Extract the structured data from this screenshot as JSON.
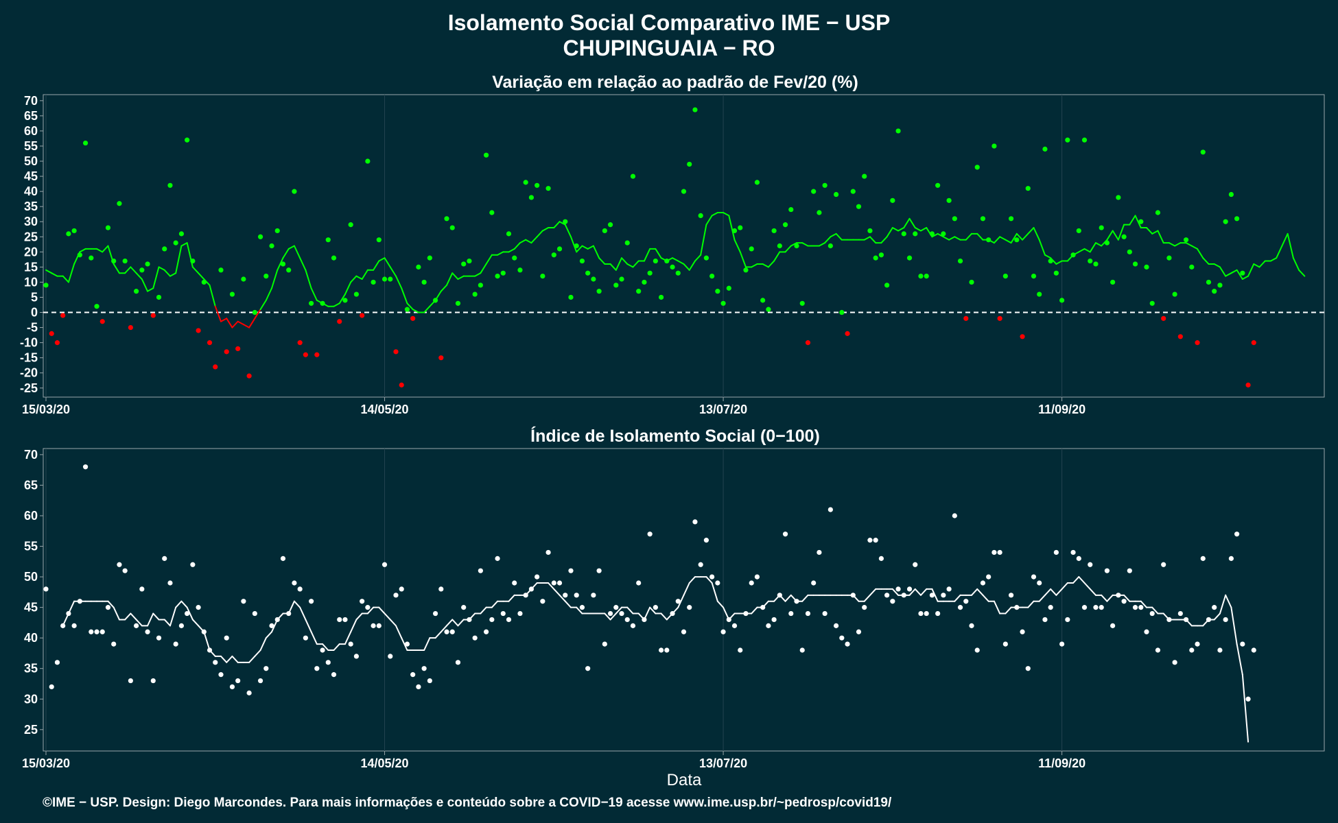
{
  "chart_data": [
    {
      "type": "scatter",
      "title": "Isolamento Social Comparativo IME − USP",
      "subtitle": "CHUPINGUAIA − RO",
      "panel_title": "Variação em relação ao padrão de Fev/20 (%)",
      "ylim": [
        -28,
        72
      ],
      "yticks": [
        -25,
        -20,
        -15,
        -10,
        -5,
        0,
        5,
        10,
        15,
        20,
        25,
        30,
        35,
        40,
        45,
        50,
        55,
        60,
        65,
        70
      ],
      "x_start": "2020-03-15",
      "x_end": "2020-10-27",
      "xticks": [
        {
          "date": "2020-03-15",
          "label": "15/03/20"
        },
        {
          "date": "2020-05-14",
          "label": "14/05/20"
        },
        {
          "date": "2020-07-13",
          "label": "13/07/20"
        },
        {
          "date": "2020-09-11",
          "label": "11/09/20"
        }
      ],
      "reference_line": 0,
      "colors": {
        "positive": "#00ff00",
        "negative": "#ff0000",
        "reference": "#ffffff"
      },
      "points": [
        9,
        -7,
        -10,
        -1,
        26,
        27,
        19,
        56,
        18,
        2,
        -3,
        28,
        17,
        36,
        17,
        -5,
        7,
        14,
        16,
        -1,
        5,
        21,
        42,
        23,
        26,
        57,
        17,
        -6,
        10,
        -10,
        -18,
        14,
        -13,
        6,
        -12,
        11,
        -21,
        0,
        25,
        12,
        22,
        27,
        16,
        14,
        40,
        -10,
        -14,
        3,
        -14,
        3,
        24,
        18,
        -3,
        4,
        29,
        6,
        -1,
        50,
        10,
        24,
        11,
        11,
        -13,
        -24,
        1,
        -2,
        15,
        10,
        18,
        4,
        -15,
        31,
        28,
        3,
        16,
        17,
        6,
        9,
        52,
        33,
        12,
        13,
        26,
        18,
        14,
        43,
        38,
        42,
        12,
        41,
        19,
        21,
        30,
        5,
        22,
        17,
        13,
        11,
        7,
        27,
        29,
        9,
        11,
        23,
        45,
        7,
        10,
        13,
        17,
        5,
        17,
        15,
        13,
        40,
        49,
        67,
        32,
        18,
        12,
        7,
        3,
        8,
        27,
        28,
        14,
        21,
        43,
        4,
        1,
        27,
        22,
        29,
        34,
        22,
        3,
        -10,
        40,
        33,
        42,
        22,
        39,
        0,
        -7,
        40,
        35,
        45,
        27,
        18,
        19,
        9,
        37,
        60,
        26,
        18,
        26,
        12,
        12,
        26,
        42,
        26,
        37,
        31,
        17,
        -2,
        10,
        48,
        31,
        24,
        55,
        -2,
        12,
        31,
        24,
        -8,
        41,
        12,
        6,
        54,
        17,
        13,
        4,
        57,
        19,
        27,
        57,
        17,
        16,
        28,
        23,
        10,
        38,
        25,
        20,
        16,
        30,
        15,
        3,
        33,
        -2,
        18,
        6,
        -8,
        24,
        15,
        -10,
        53,
        10,
        7,
        9,
        30,
        39,
        31,
        13,
        -24,
        -10
      ],
      "moving_average": [
        14,
        13,
        12,
        12,
        10,
        16,
        20,
        21,
        21,
        21,
        20,
        22,
        16,
        13,
        13,
        15,
        13,
        11,
        7,
        8,
        15,
        14,
        12,
        13,
        22,
        23,
        15,
        13,
        11,
        9,
        2,
        -3,
        -2,
        -5,
        -3,
        -4,
        -5,
        -2,
        1,
        4,
        8,
        14,
        18,
        21,
        22,
        18,
        14,
        8,
        4,
        3,
        2,
        2,
        3,
        6,
        10,
        12,
        11,
        14,
        14,
        17,
        18,
        15,
        12,
        8,
        3,
        1,
        0,
        0,
        2,
        4,
        7,
        9,
        13,
        11,
        12,
        12,
        12,
        13,
        16,
        19,
        19,
        20,
        20,
        21,
        23,
        24,
        23,
        25,
        27,
        28,
        28,
        30,
        29,
        25,
        20,
        22,
        21,
        22,
        18,
        16,
        16,
        14,
        18,
        16,
        15,
        17,
        17,
        21,
        21,
        18,
        17,
        18,
        17,
        16,
        14,
        17,
        19,
        29,
        32,
        33,
        33,
        32,
        24,
        20,
        15,
        15,
        16,
        16,
        15,
        17,
        20,
        20,
        22,
        23,
        23,
        22,
        22,
        22,
        23,
        25,
        26,
        24,
        24,
        24,
        24,
        24,
        25,
        23,
        23,
        25,
        28,
        27,
        28,
        31,
        28,
        27,
        28,
        25,
        26,
        25,
        24,
        25,
        24,
        24,
        26,
        26,
        24,
        24,
        23,
        25,
        24,
        23,
        26,
        24,
        26,
        28,
        24,
        19,
        18,
        16,
        17,
        17,
        19,
        20,
        21,
        20,
        23,
        22,
        24,
        27,
        24,
        29,
        29,
        32,
        28,
        28,
        26,
        27,
        23,
        23,
        22,
        23,
        23,
        22,
        21,
        18,
        16,
        16,
        15,
        12,
        13,
        14,
        11,
        12,
        16,
        15,
        17,
        17,
        18,
        22,
        26,
        18,
        14,
        12
      ]
    },
    {
      "type": "scatter",
      "panel_title": "Índice de Isolamento Social (0−100)",
      "xlabel": "Data",
      "ylim": [
        21.5,
        71
      ],
      "yticks": [
        25,
        30,
        35,
        40,
        45,
        50,
        55,
        60,
        65,
        70
      ],
      "x_start": "2020-03-15",
      "x_end": "2020-10-27",
      "xticks": [
        {
          "date": "2020-03-15",
          "label": "15/03/20"
        },
        {
          "date": "2020-05-14",
          "label": "14/05/20"
        },
        {
          "date": "2020-07-13",
          "label": "13/07/20"
        },
        {
          "date": "2020-09-11",
          "label": "11/09/20"
        }
      ],
      "colors": {
        "series": "#ffffff"
      },
      "points": [
        48,
        32,
        36,
        42,
        44,
        42,
        46,
        68,
        41,
        41,
        41,
        45,
        39,
        52,
        51,
        33,
        42,
        48,
        41,
        33,
        40,
        53,
        49,
        39,
        42,
        44,
        52,
        45,
        41,
        38,
        36,
        34,
        40,
        32,
        33,
        46,
        31,
        44,
        33,
        35,
        42,
        43,
        53,
        44,
        49,
        48,
        40,
        46,
        35,
        38,
        36,
        34,
        43,
        43,
        39,
        37,
        46,
        45,
        42,
        42,
        52,
        37,
        47,
        48,
        39,
        34,
        32,
        35,
        33,
        44,
        48,
        41,
        41,
        36,
        45,
        43,
        40,
        51,
        41,
        43,
        53,
        44,
        43,
        49,
        44,
        47,
        48,
        50,
        46,
        54,
        49,
        49,
        47,
        51,
        47,
        45,
        35,
        47,
        51,
        39,
        44,
        45,
        44,
        43,
        42,
        49,
        43,
        57,
        45,
        38,
        38,
        44,
        46,
        41,
        45,
        59,
        52,
        56,
        50,
        49,
        41,
        43,
        42,
        38,
        44,
        49,
        50,
        45,
        42,
        43,
        47,
        57,
        44,
        46,
        38,
        44,
        49,
        54,
        44,
        61,
        42,
        40,
        39,
        47,
        41,
        45,
        56,
        56,
        53,
        47,
        46,
        48,
        47,
        48,
        52,
        44,
        44,
        47,
        44,
        47,
        48,
        60,
        45,
        46,
        42,
        38,
        49,
        50,
        54,
        54,
        39,
        47,
        45,
        41,
        35,
        50,
        49,
        43,
        45,
        54,
        39,
        43,
        54,
        53,
        45,
        52,
        45,
        45,
        51,
        42,
        47,
        46,
        51,
        45,
        45,
        41,
        44,
        38,
        52,
        43,
        36,
        44,
        43,
        38,
        39,
        53,
        43,
        45,
        38,
        43,
        53,
        57,
        39,
        30,
        38
      ],
      "moving_average": [
        null,
        null,
        null,
        42,
        44,
        46,
        46,
        46,
        46,
        46,
        46,
        46,
        45,
        43,
        43,
        44,
        43,
        42,
        42,
        44,
        43,
        43,
        42,
        45,
        46,
        45,
        43,
        42,
        41,
        38,
        37,
        37,
        36,
        37,
        36,
        36,
        36,
        37,
        38,
        40,
        41,
        43,
        44,
        44,
        46,
        45,
        43,
        41,
        39,
        39,
        38,
        38,
        39,
        39,
        41,
        43,
        44,
        44,
        45,
        45,
        44,
        43,
        42,
        40,
        38,
        38,
        38,
        38,
        40,
        40,
        41,
        42,
        43,
        42,
        43,
        43,
        44,
        44,
        45,
        45,
        46,
        46,
        46,
        47,
        47,
        47,
        48,
        49,
        49,
        49,
        48,
        47,
        46,
        45,
        45,
        44,
        44,
        44,
        44,
        44,
        43,
        44,
        45,
        45,
        44,
        44,
        43,
        45,
        44,
        44,
        43,
        44,
        45,
        47,
        49,
        50,
        50,
        50,
        49,
        46,
        45,
        43,
        44,
        44,
        44,
        44,
        45,
        45,
        46,
        46,
        47,
        46,
        47,
        46,
        46,
        47,
        47,
        47,
        47,
        47,
        47,
        47,
        47,
        47,
        46,
        46,
        47,
        48,
        48,
        48,
        48,
        47,
        47,
        47,
        48,
        47,
        48,
        48,
        46,
        46,
        46,
        46,
        47,
        47,
        47,
        48,
        47,
        46,
        46,
        44,
        44,
        45,
        45,
        45,
        45,
        46,
        46,
        47,
        48,
        47,
        48,
        49,
        49,
        50,
        49,
        48,
        47,
        47,
        46,
        47,
        47,
        47,
        46,
        46,
        46,
        45,
        45,
        44,
        44,
        43,
        43,
        43,
        43,
        42,
        42,
        42,
        43,
        43,
        44,
        47,
        45,
        39,
        34,
        23
      ]
    }
  ],
  "footer": "©IME − USP. Design: Diego Marcondes. Para mais informações e conteúdo sobre a COVID−19 acesse www.ime.usp.br/~pedrosp/covid19/"
}
